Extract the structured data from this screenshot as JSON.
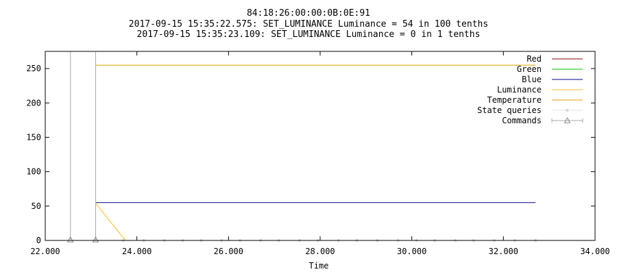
{
  "chart_data": {
    "type": "line",
    "title": "84:18:26:00:00:0B:0E:91",
    "subtitle_lines": [
      "2017-09-15 15:35:22.575: SET_LUMINANCE Luminance = 54 in 100 tenths",
      "2017-09-15 15:35:23.109: SET_LUMINANCE Luminance = 0 in 1 tenths"
    ],
    "xlabel": "Time",
    "ylabel": "",
    "xlim": [
      22.0,
      34.0
    ],
    "ylim": [
      0,
      275
    ],
    "x_ticks": [
      22.0,
      24.0,
      26.0,
      28.0,
      30.0,
      32.0,
      34.0
    ],
    "x_tick_labels": [
      "22.000",
      "24.000",
      "26.000",
      "28.000",
      "30.000",
      "32.000",
      "34.000"
    ],
    "y_ticks": [
      0,
      50,
      100,
      150,
      200,
      250
    ],
    "y_tick_labels": [
      "0",
      "50",
      "100",
      "150",
      "200",
      "250"
    ],
    "grid": false,
    "legend_position": "top-right",
    "series": [
      {
        "name": "Red",
        "color": "#8b0000",
        "style": "line",
        "points": []
      },
      {
        "name": "Green",
        "color": "#00c000",
        "style": "line",
        "points": []
      },
      {
        "name": "Blue",
        "color": "#00008b",
        "style": "line",
        "points": [
          [
            23.1,
            55
          ],
          [
            32.7,
            55
          ]
        ]
      },
      {
        "name": "Luminance",
        "color": "#ffc020",
        "style": "line",
        "points": [
          [
            23.1,
            54
          ],
          [
            23.75,
            0
          ]
        ]
      },
      {
        "name": "Temperature",
        "color": "#e0a000",
        "style": "line",
        "points": [
          [
            23.1,
            255
          ],
          [
            32.7,
            255
          ]
        ]
      },
      {
        "name": "State queries",
        "color": "#d3d3d3",
        "style": "points",
        "marker": "dot",
        "points": [
          [
            23.7,
            0
          ],
          [
            24.15,
            0
          ],
          [
            24.6,
            0
          ],
          [
            25.0,
            0
          ],
          [
            25.4,
            0
          ],
          [
            25.85,
            0
          ],
          [
            26.25,
            0
          ],
          [
            26.7,
            0
          ],
          [
            27.1,
            0
          ],
          [
            27.55,
            0
          ],
          [
            27.95,
            0
          ],
          [
            28.4,
            0
          ],
          [
            28.8,
            0
          ],
          [
            29.25,
            0
          ],
          [
            29.7,
            0
          ],
          [
            30.1,
            0
          ],
          [
            30.5,
            0
          ],
          [
            30.95,
            0
          ],
          [
            31.35,
            0
          ],
          [
            31.8,
            0
          ],
          [
            32.25,
            0
          ],
          [
            32.7,
            0
          ]
        ]
      },
      {
        "name": "Commands",
        "color": "#a9a9a9",
        "style": "impulse",
        "marker": "triangle",
        "points": [
          [
            22.55,
            275
          ],
          [
            23.1,
            275
          ]
        ]
      }
    ]
  }
}
